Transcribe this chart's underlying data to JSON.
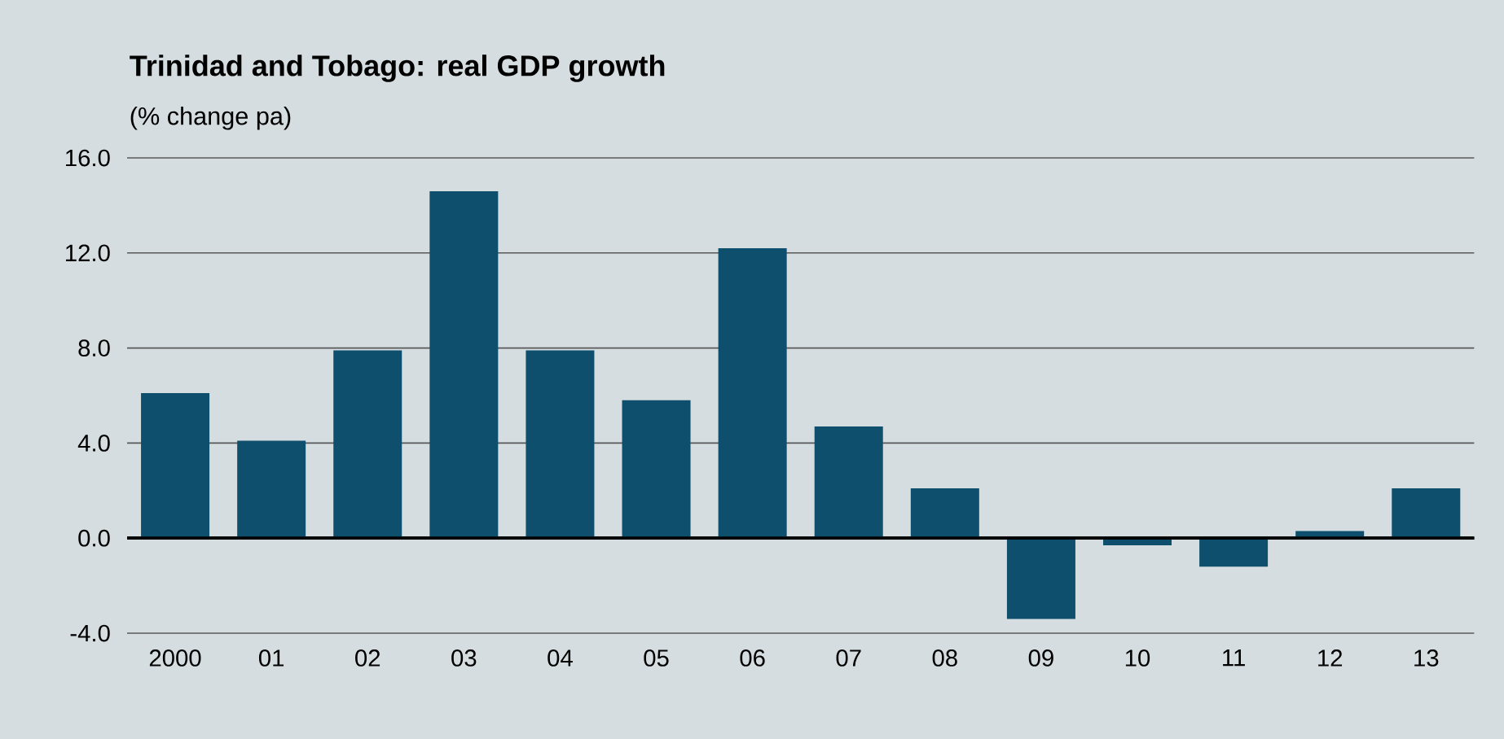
{
  "chart_data": {
    "type": "bar",
    "title": "Trinidad and Tobago: real GDP growth",
    "subtitle": "(% change pa)",
    "categories": [
      "2000",
      "01",
      "02",
      "03",
      "04",
      "05",
      "06",
      "07",
      "08",
      "09",
      "10",
      "11",
      "12",
      "13"
    ],
    "values": [
      6.1,
      4.1,
      7.9,
      14.6,
      7.9,
      5.8,
      12.2,
      4.7,
      2.1,
      -3.4,
      -0.3,
      -1.2,
      0.3,
      2.1
    ],
    "color": "#0d4f6c",
    "ylim": [
      -4,
      16
    ],
    "yticks": [
      {
        "value": -4,
        "label": "-4.0"
      },
      {
        "value": 0,
        "label": "0.0"
      },
      {
        "value": 4,
        "label": "4.0"
      },
      {
        "value": 8,
        "label": "8.0"
      },
      {
        "value": 12,
        "label": "12.0"
      },
      {
        "value": 16,
        "label": "16.0"
      }
    ],
    "grid": "y"
  }
}
